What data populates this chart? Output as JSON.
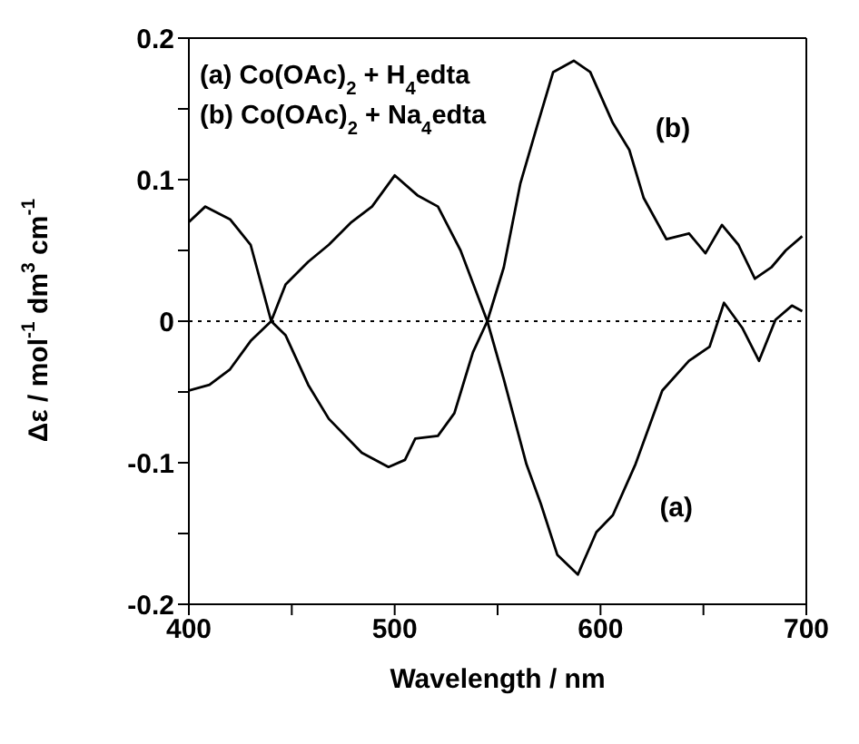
{
  "chart_data": {
    "type": "line",
    "xlabel": "Wavelength / nm",
    "ylabel": "Δε / mol$^{-1}$ dm$^{3}$ cm$^{-1}$",
    "xlim": [
      400,
      700
    ],
    "xticks": [
      400,
      {
        "value": 450,
        "label": null
      },
      500,
      {
        "value": 550,
        "label": null
      },
      600,
      {
        "value": 650,
        "label": null
      },
      700
    ],
    "ylim": [
      -0.2,
      0.2
    ],
    "yticks": [
      -0.2,
      {
        "value": -0.15,
        "label": null
      },
      -0.1,
      {
        "value": -0.05,
        "label": null
      },
      0,
      {
        "value": 0.05,
        "label": null
      },
      0.1,
      {
        "value": 0.15,
        "label": null
      },
      0.2
    ],
    "legend": false,
    "marker": "none",
    "line_style": "solid",
    "ref_lines": [
      {
        "axis": "y",
        "value": 0,
        "label": null,
        "line_style": "dotted",
        "color": "#000000"
      }
    ],
    "annotations": [
      "(a)  Co(OAc)$_{2}$ + H$_{4}$edta",
      "(b)  Co(OAc)$_{2}$ + Na$_{4}$edta"
    ],
    "series": [
      {
        "name": "(a)",
        "color": "#000000",
        "x": [
          400,
          410,
          420,
          430,
          440,
          447,
          458,
          468,
          479,
          489,
          500,
          511,
          521,
          532,
          545,
          553,
          564,
          571,
          579,
          589,
          598,
          606,
          617,
          630,
          643,
          653,
          660,
          669,
          677,
          685,
          693,
          698
        ],
        "values": [
          -0.049,
          -0.045,
          -0.034,
          -0.014,
          0,
          0.026,
          0.042,
          0.054,
          0.07,
          0.081,
          0.103,
          0.089,
          0.081,
          0.05,
          0,
          -0.041,
          -0.101,
          -0.129,
          -0.165,
          -0.179,
          -0.149,
          -0.137,
          -0.101,
          -0.049,
          -0.028,
          -0.018,
          0.013,
          -0.005,
          -0.028,
          0.001,
          0.011,
          0.007
        ]
      },
      {
        "name": "(b)",
        "color": "#000000",
        "x": [
          400,
          408,
          420,
          430,
          440,
          447,
          458,
          468,
          484,
          497,
          505,
          510,
          521,
          529,
          538,
          545,
          553,
          561,
          569,
          577,
          587,
          595,
          606,
          614,
          621,
          632,
          643,
          651,
          659,
          667,
          675,
          683,
          690,
          698
        ],
        "values": [
          0.07,
          0.081,
          0.072,
          0.054,
          0,
          -0.01,
          -0.045,
          -0.069,
          -0.093,
          -0.103,
          -0.098,
          -0.083,
          -0.081,
          -0.065,
          -0.022,
          0,
          0.038,
          0.097,
          0.137,
          0.176,
          0.184,
          0.176,
          0.14,
          0.121,
          0.087,
          0.058,
          0.062,
          0.048,
          0.068,
          0.054,
          0.03,
          0.038,
          0.05,
          0.06
        ]
      }
    ]
  }
}
